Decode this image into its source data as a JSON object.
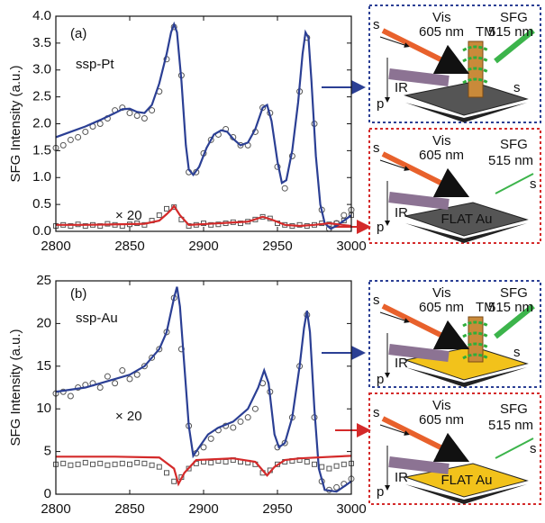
{
  "chart_data": [
    {
      "type": "line",
      "ylabel": "SFG Intensity (a.u.)",
      "panel_label": "(a)",
      "sample_label": "ssp-Pt",
      "scale_label": "× 20",
      "xlim": [
        2800,
        3000
      ],
      "xticks": [
        2800,
        2850,
        2900,
        2950,
        3000
      ],
      "ylim": [
        0,
        4
      ],
      "yticks": [
        {
          "value": 0,
          "label": "0.0"
        },
        0.5,
        {
          "value": 1,
          "label": "1.0"
        },
        1.5,
        {
          "value": 2,
          "label": "2.0"
        },
        2.5,
        {
          "value": 3,
          "label": "3.0"
        },
        3.5,
        {
          "value": 4,
          "label": "4.0"
        }
      ],
      "series": [
        {
          "color": "#555555",
          "marker": "circle",
          "x": [
            2800,
            2805,
            2810,
            2815,
            2820,
            2825,
            2830,
            2835,
            2840,
            2845,
            2850,
            2855,
            2860,
            2865,
            2870,
            2875,
            2880,
            2885,
            2890,
            2895,
            2900,
            2905,
            2910,
            2915,
            2920,
            2925,
            2930,
            2935,
            2940,
            2945,
            2950,
            2955,
            2960,
            2965,
            2970,
            2975,
            2980,
            2985,
            2990,
            2995,
            3000
          ],
          "values": [
            1.55,
            1.6,
            1.7,
            1.75,
            1.85,
            1.95,
            2.0,
            2.1,
            2.25,
            2.3,
            2.2,
            2.15,
            2.1,
            2.25,
            2.6,
            3.2,
            3.8,
            2.9,
            1.1,
            1.1,
            1.45,
            1.7,
            1.8,
            1.9,
            1.75,
            1.6,
            1.6,
            1.85,
            2.3,
            2.2,
            1.2,
            0.8,
            1.4,
            2.6,
            3.6,
            2.0,
            0.4,
            0.05,
            0.15,
            0.3,
            0.4
          ]
        },
        {
          "color": "#555555",
          "marker": "square",
          "x": [
            2800,
            2805,
            2810,
            2815,
            2820,
            2825,
            2830,
            2835,
            2840,
            2845,
            2850,
            2855,
            2860,
            2865,
            2870,
            2875,
            2880,
            2885,
            2890,
            2895,
            2900,
            2905,
            2910,
            2915,
            2920,
            2925,
            2930,
            2935,
            2940,
            2945,
            2950,
            2955,
            2960,
            2965,
            2970,
            2975,
            2980,
            2985,
            2990,
            2995,
            3000
          ],
          "values": [
            0.1,
            0.12,
            0.1,
            0.13,
            0.1,
            0.12,
            0.1,
            0.14,
            0.12,
            0.1,
            0.13,
            0.15,
            0.12,
            0.2,
            0.3,
            0.42,
            0.45,
            0.22,
            0.1,
            0.12,
            0.15,
            0.12,
            0.13,
            0.15,
            0.17,
            0.15,
            0.18,
            0.22,
            0.27,
            0.24,
            0.15,
            0.12,
            0.1,
            0.12,
            0.1,
            0.12,
            0.15,
            0.13,
            0.15,
            0.2,
            0.3
          ]
        },
        {
          "color": "#2b3f94",
          "marker": "line",
          "x": [
            2800,
            2810,
            2820,
            2830,
            2840,
            2845,
            2850,
            2855,
            2860,
            2865,
            2870,
            2875,
            2878,
            2880,
            2882,
            2885,
            2888,
            2890,
            2893,
            2897,
            2902,
            2907,
            2912,
            2916,
            2920,
            2925,
            2930,
            2935,
            2940,
            2943,
            2946,
            2950,
            2953,
            2956,
            2960,
            2964,
            2967,
            2969,
            2971,
            2973,
            2976,
            2979,
            2982,
            2986,
            2990,
            2995,
            3000
          ],
          "values": [
            1.75,
            1.85,
            1.95,
            2.07,
            2.2,
            2.27,
            2.28,
            2.22,
            2.2,
            2.35,
            2.75,
            3.3,
            3.7,
            3.85,
            3.7,
            2.8,
            1.6,
            1.15,
            1.05,
            1.2,
            1.55,
            1.8,
            1.88,
            1.85,
            1.72,
            1.6,
            1.65,
            1.9,
            2.3,
            2.35,
            2.05,
            1.3,
            0.9,
            0.95,
            1.5,
            2.4,
            3.3,
            3.7,
            3.6,
            2.8,
            1.4,
            0.5,
            0.15,
            0.05,
            0.1,
            0.2,
            0.3
          ]
        },
        {
          "color": "#d42a2a",
          "marker": "line",
          "x": [
            2800,
            2820,
            2840,
            2860,
            2870,
            2875,
            2878,
            2880,
            2884,
            2890,
            2910,
            2930,
            2940,
            2946,
            2955,
            2965,
            2975,
            2985,
            3000
          ],
          "values": [
            0.12,
            0.12,
            0.13,
            0.14,
            0.2,
            0.32,
            0.4,
            0.47,
            0.3,
            0.12,
            0.15,
            0.18,
            0.27,
            0.22,
            0.12,
            0.1,
            0.12,
            0.15,
            0.1
          ]
        }
      ]
    },
    {
      "type": "line",
      "ylabel": "SFG Intensity (a.u.)",
      "panel_label": "(b)",
      "sample_label": "ssp-Au",
      "scale_label": "× 20",
      "xlim": [
        2800,
        3000
      ],
      "xticks": [
        2800,
        2850,
        2900,
        2950,
        3000
      ],
      "ylim": [
        0,
        25
      ],
      "yticks": [
        0,
        5,
        10,
        15,
        20,
        25
      ],
      "series": [
        {
          "color": "#555555",
          "marker": "circle",
          "x": [
            2800,
            2805,
            2810,
            2815,
            2820,
            2825,
            2830,
            2835,
            2840,
            2845,
            2850,
            2855,
            2860,
            2865,
            2870,
            2875,
            2880,
            2885,
            2890,
            2895,
            2900,
            2905,
            2910,
            2915,
            2920,
            2925,
            2930,
            2935,
            2940,
            2945,
            2950,
            2955,
            2960,
            2965,
            2970,
            2975,
            2980,
            2985,
            2990,
            2995,
            3000
          ],
          "values": [
            11.8,
            12,
            11.5,
            12.5,
            12.8,
            13,
            12.5,
            13.8,
            13,
            14.5,
            13.5,
            14,
            15,
            16,
            17,
            19,
            23,
            17,
            8,
            4.8,
            5.5,
            6.5,
            7.5,
            8,
            7.8,
            8.5,
            9,
            10,
            13,
            12,
            5.5,
            6,
            9,
            15,
            21,
            9,
            1.5,
            0.5,
            0.8,
            1.2,
            1.8
          ]
        },
        {
          "color": "#555555",
          "marker": "square",
          "x": [
            2800,
            2805,
            2810,
            2815,
            2820,
            2825,
            2830,
            2835,
            2840,
            2845,
            2850,
            2855,
            2860,
            2865,
            2870,
            2875,
            2880,
            2885,
            2890,
            2895,
            2900,
            2905,
            2910,
            2915,
            2920,
            2925,
            2930,
            2935,
            2940,
            2945,
            2950,
            2955,
            2960,
            2965,
            2970,
            2975,
            2980,
            2985,
            2990,
            2995,
            3000
          ],
          "values": [
            3.5,
            3.6,
            3.4,
            3.5,
            3.7,
            3.5,
            3.6,
            3.4,
            3.5,
            3.6,
            3.5,
            3.7,
            3.6,
            3.4,
            3.2,
            2.5,
            1.5,
            2.0,
            3.0,
            3.6,
            3.8,
            3.7,
            3.9,
            3.8,
            4.0,
            3.8,
            3.7,
            3.5,
            2.5,
            2.8,
            3.5,
            3.8,
            3.9,
            4.0,
            3.8,
            3.5,
            3.2,
            3.0,
            3.3,
            3.5,
            3.6
          ]
        },
        {
          "color": "#2b3f94",
          "marker": "line",
          "x": [
            2800,
            2820,
            2840,
            2850,
            2860,
            2870,
            2875,
            2880,
            2882,
            2884,
            2887,
            2890,
            2893,
            2897,
            2903,
            2910,
            2920,
            2930,
            2937,
            2941,
            2944,
            2948,
            2951,
            2955,
            2960,
            2965,
            2968,
            2970,
            2972,
            2975,
            2978,
            2982,
            2990,
            3000
          ],
          "values": [
            12,
            12.5,
            13.5,
            14,
            15,
            17,
            19,
            23,
            24.3,
            22,
            15,
            8,
            4.5,
            5.5,
            7,
            7.8,
            8.5,
            10,
            12.5,
            14.5,
            13,
            7,
            5.5,
            6,
            9,
            15,
            19.5,
            21.5,
            19,
            10,
            3,
            0.5,
            0.3,
            1.5
          ]
        },
        {
          "color": "#d42a2a",
          "marker": "line",
          "x": [
            2800,
            2840,
            2870,
            2880,
            2883,
            2887,
            2895,
            2920,
            2935,
            2943,
            2948,
            2955,
            2965,
            3000
          ],
          "values": [
            4.4,
            4.4,
            4.3,
            3,
            1.2,
            2.5,
            4,
            4.2,
            3.8,
            2.2,
            3.2,
            4,
            4.2,
            4.5
          ]
        }
      ]
    }
  ],
  "diagrams": [
    {
      "vis": "Vis",
      "vis_wavelength": "605 nm",
      "sfg": "SFG",
      "sfg_wavelength": "515 nm",
      "tm": "TM",
      "s_in": "s",
      "s_out": "s",
      "p": "p",
      "ir": "IR"
    },
    {
      "vis": "Vis",
      "vis_wavelength": "605 nm",
      "sfg": "SFG",
      "sfg_wavelength": "515 nm",
      "surface": "FLAT Au",
      "s_in": "s",
      "s_out": "s",
      "p": "p",
      "ir": "IR"
    },
    {
      "vis": "Vis",
      "vis_wavelength": "605 nm",
      "sfg": "SFG",
      "sfg_wavelength": "515 nm",
      "tm": "TM",
      "s_in": "s",
      "s_out": "s",
      "p": "p",
      "ir": "IR"
    },
    {
      "vis": "Vis",
      "vis_wavelength": "605 nm",
      "sfg": "SFG",
      "sfg_wavelength": "515 nm",
      "surface": "FLAT Au",
      "s_in": "s",
      "s_out": "s",
      "p": "p",
      "ir": "IR"
    }
  ]
}
